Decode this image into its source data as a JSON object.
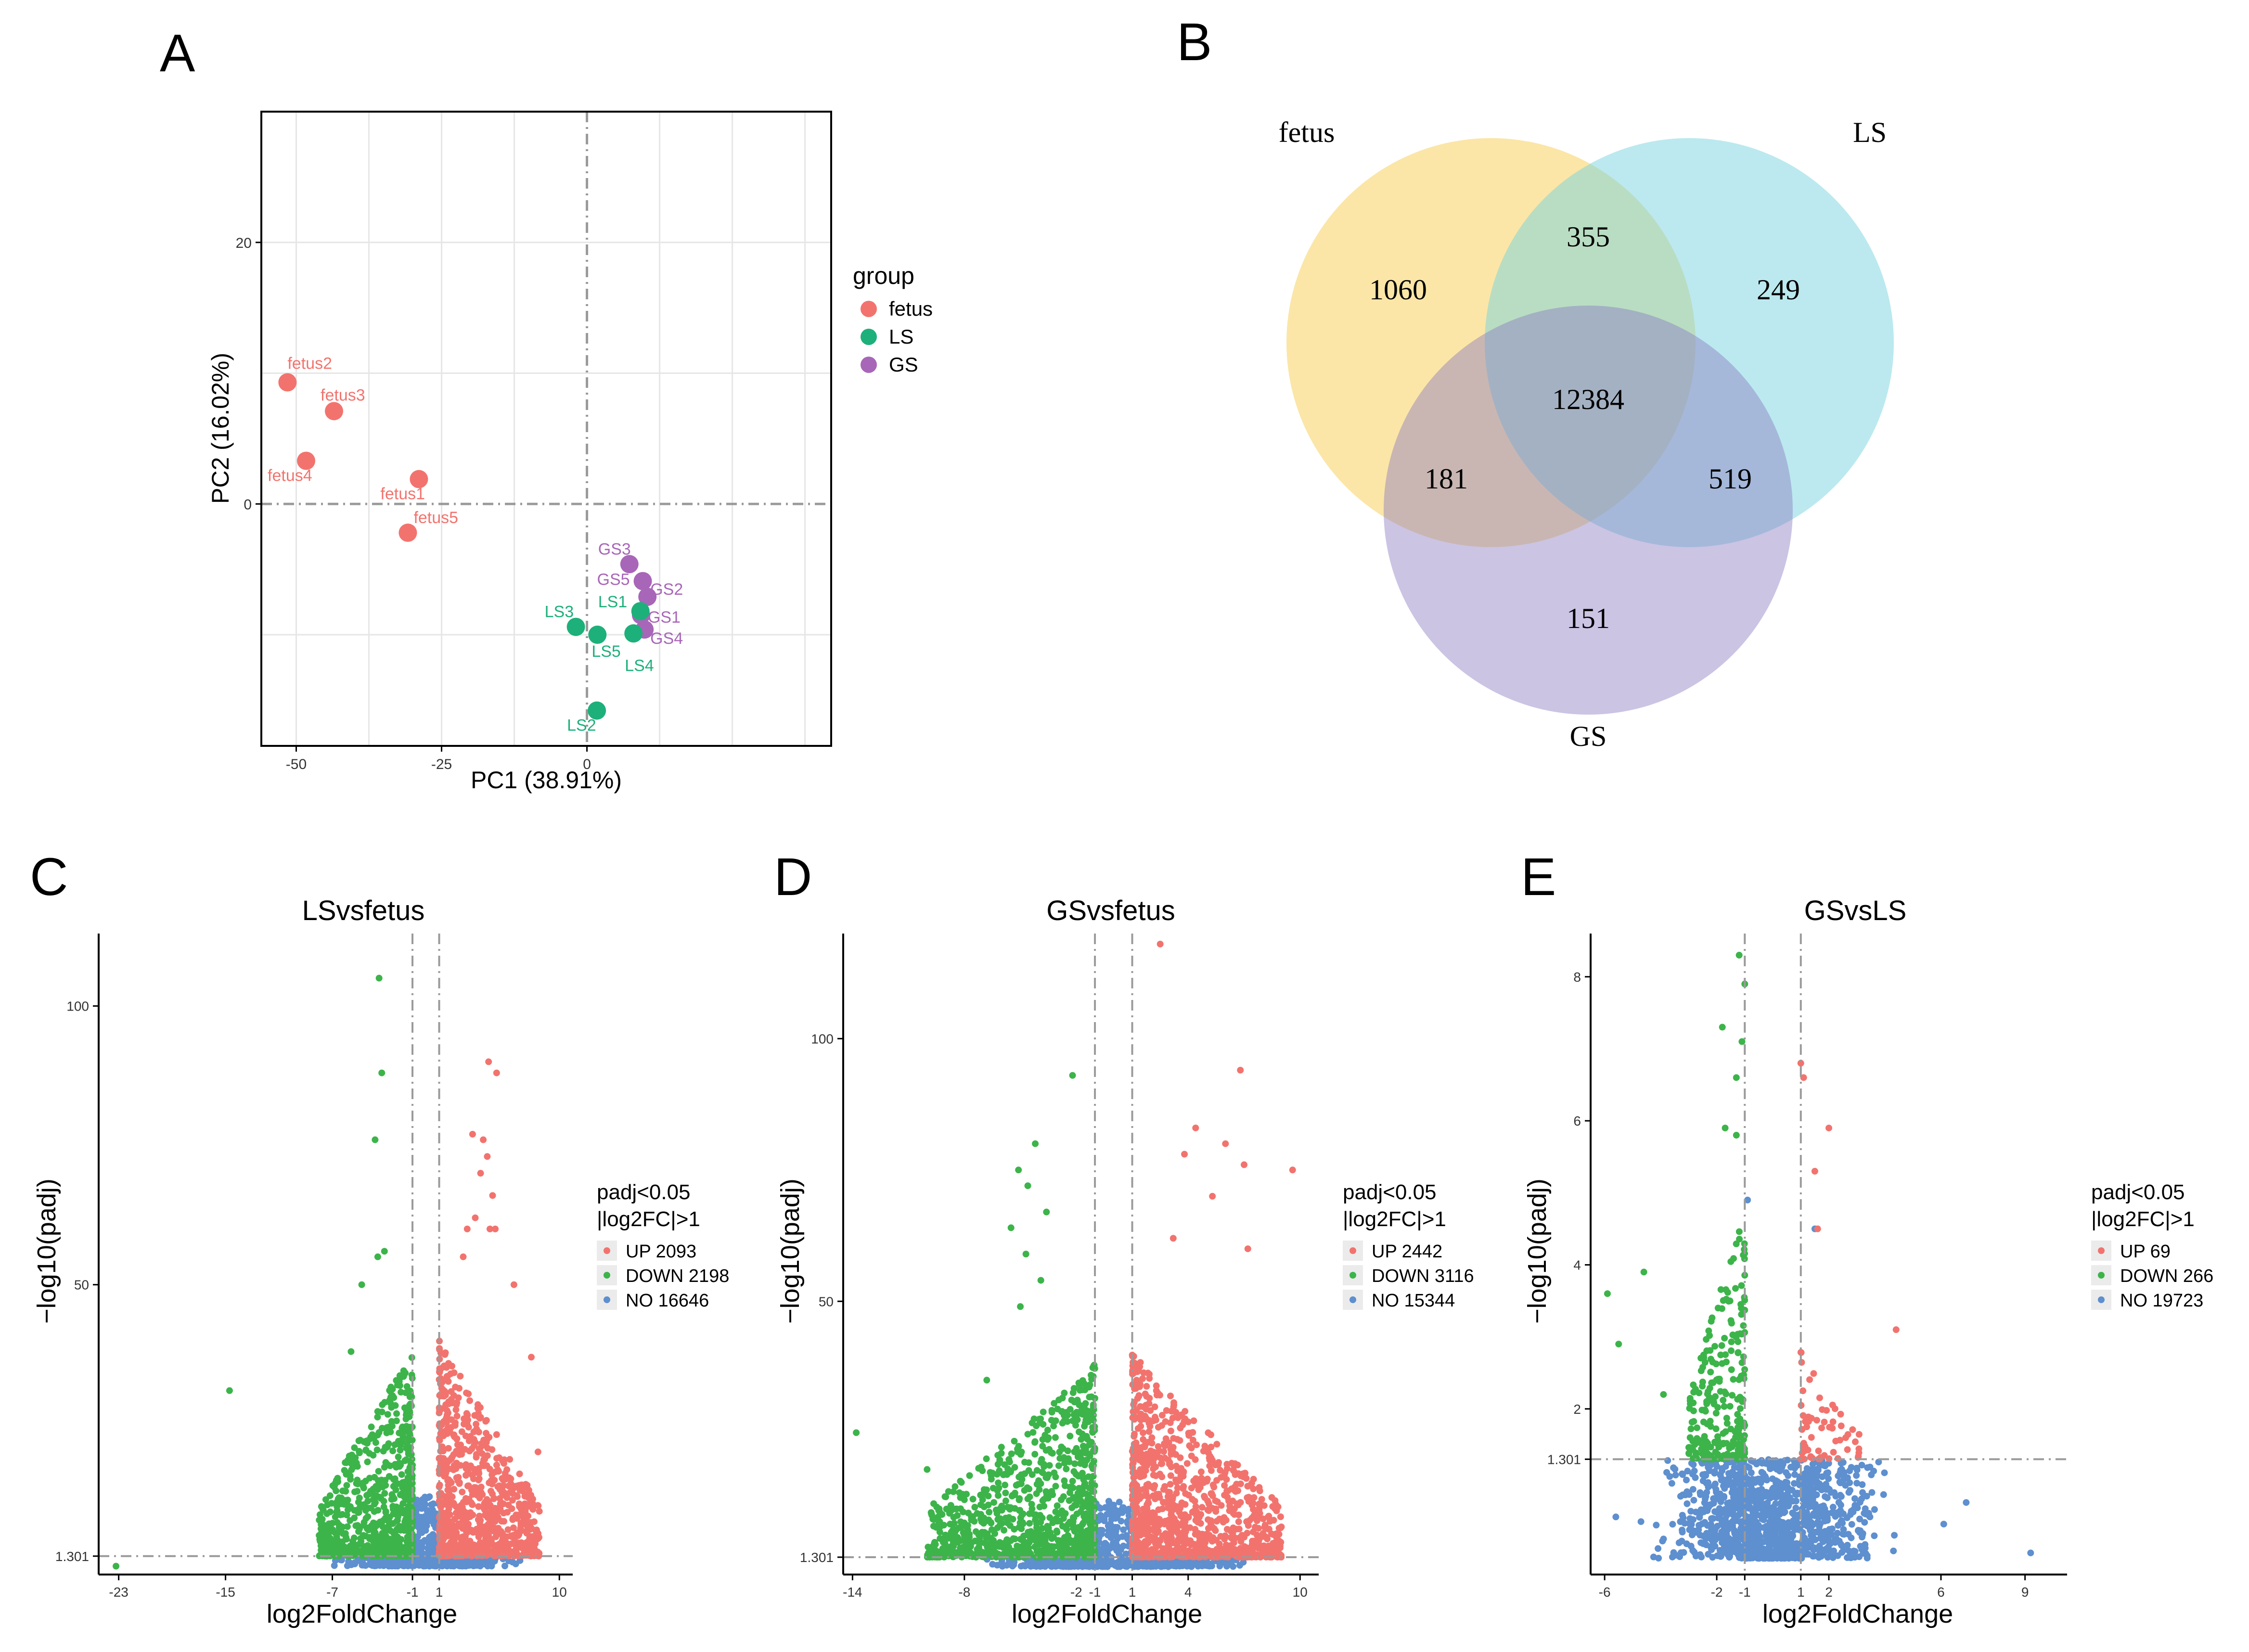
{
  "panel_letters": [
    "A",
    "B",
    "C",
    "D",
    "E"
  ],
  "chart_data": [
    {
      "panel": "A",
      "type": "scatter",
      "xlabel": "PC1 (38.91%)",
      "ylabel": "PC2 (16.02%)",
      "xlim": [
        -56,
        42
      ],
      "ylim": [
        -18.5,
        30
      ],
      "xticks": [
        -50,
        -25,
        0
      ],
      "yticks": [
        0,
        20
      ],
      "legend_title": "group",
      "legend": [
        {
          "name": "fetus",
          "color": "#F2736E"
        },
        {
          "name": "LS",
          "color": "#1DB07B"
        },
        {
          "name": "GS",
          "color": "#A866B8"
        }
      ],
      "points": [
        {
          "label": "fetus2",
          "group": "fetus",
          "x": -51.5,
          "y": 9.3
        },
        {
          "label": "fetus3",
          "group": "fetus",
          "x": -43.5,
          "y": 7.1
        },
        {
          "label": "fetus4",
          "group": "fetus",
          "x": -48.3,
          "y": 3.3
        },
        {
          "label": "fetus1",
          "group": "fetus",
          "x": -28.9,
          "y": 1.9
        },
        {
          "label": "fetus5",
          "group": "fetus",
          "x": -30.8,
          "y": -2.2
        },
        {
          "label": "GS3",
          "group": "GS",
          "x": 7.3,
          "y": -4.6
        },
        {
          "label": "GS5",
          "group": "GS",
          "x": 9.6,
          "y": -5.9
        },
        {
          "label": "GS2",
          "group": "GS",
          "x": 10.4,
          "y": -7.1
        },
        {
          "label": "GS1",
          "group": "GS",
          "x": 9.3,
          "y": -8.5
        },
        {
          "label": "GS4",
          "group": "GS",
          "x": 9.9,
          "y": -9.6
        },
        {
          "label": "LS1",
          "group": "LS",
          "x": 9.2,
          "y": -8.2
        },
        {
          "label": "LS3",
          "group": "LS",
          "x": -1.9,
          "y": -9.4
        },
        {
          "label": "LS5",
          "group": "LS",
          "x": 1.8,
          "y": -10.0
        },
        {
          "label": "LS4",
          "group": "LS",
          "x": 8.0,
          "y": -9.9
        },
        {
          "label": "LS2",
          "group": "LS",
          "x": 1.7,
          "y": -15.8
        }
      ]
    },
    {
      "panel": "B",
      "type": "venn",
      "sets": [
        {
          "name": "fetus",
          "color": "#F9D56C"
        },
        {
          "name": "LS",
          "color": "#78D4E0"
        },
        {
          "name": "GS",
          "color": "#9F90C8"
        }
      ],
      "regions": {
        "fetus_only": "1060",
        "fetus_LS": "355",
        "LS_only": "249",
        "all": "12384",
        "fetus_GS": "181",
        "LS_GS": "519",
        "GS_only": "151"
      }
    },
    {
      "panel": "C",
      "type": "scatter",
      "title": "LSvsfetus",
      "xlabel": "log2FoldChange",
      "ylabel": "−log10(padj)",
      "xlim": [
        -24.5,
        11
      ],
      "ylim": [
        -2,
        113
      ],
      "xticks": [
        -23,
        -15,
        -7,
        -1,
        1,
        10
      ],
      "yticks": [
        100,
        50
      ],
      "threshold_label": "1.301",
      "threshold_y": 1.301,
      "fc_lines": [
        -1,
        1
      ],
      "legend_title": "padj<0.05\n|log2FC|>1",
      "legend": [
        {
          "name": "UP 2093",
          "color": "#F2736E"
        },
        {
          "name": "DOWN 2198",
          "color": "#3CB44A"
        },
        {
          "name": "NO 16646",
          "color": "#5E8FCF"
        }
      ],
      "up": {
        "xr": [
          1,
          8.5
        ],
        "ymax": 40,
        "n": 900
      },
      "down": {
        "xr": [
          -8,
          -1
        ],
        "ymax": 38,
        "n": 700
      },
      "no": {
        "xr": [
          -7,
          7.5
        ],
        "ymax": 12,
        "n": 700
      },
      "outliers_up": [
        [
          2.8,
          55
        ],
        [
          3.1,
          60
        ],
        [
          3.5,
          77
        ],
        [
          4.1,
          70
        ],
        [
          4.3,
          76
        ],
        [
          3.7,
          62
        ],
        [
          4.8,
          60
        ],
        [
          5.2,
          60
        ],
        [
          5.0,
          66
        ],
        [
          4.6,
          73
        ],
        [
          4.7,
          90
        ],
        [
          5.3,
          88
        ],
        [
          6.6,
          50
        ],
        [
          7.9,
          37
        ],
        [
          8.4,
          20
        ]
      ],
      "outliers_down": [
        [
          -3.5,
          105
        ],
        [
          -3.3,
          88
        ],
        [
          -3.8,
          76
        ],
        [
          -3.6,
          55
        ],
        [
          -3.1,
          56
        ],
        [
          -4.8,
          50
        ],
        [
          -5.6,
          38
        ],
        [
          -14.7,
          31
        ],
        [
          -23.2,
          -0.5
        ]
      ]
    },
    {
      "panel": "D",
      "type": "scatter",
      "title": "GSvsfetus",
      "xlabel": "log2FoldChange",
      "ylabel": "−log10(padj)",
      "xlim": [
        -14.5,
        11
      ],
      "ylim": [
        -2,
        120
      ],
      "xticks": [
        -14,
        -8,
        -2,
        -1,
        1,
        4,
        10
      ],
      "yticks": [
        100,
        50
      ],
      "threshold_label": "1.301",
      "threshold_y": 1.301,
      "fc_lines": [
        -1,
        1
      ],
      "legend_title": "padj<0.05\n|log2FC|>1",
      "legend": [
        {
          "name": "UP 2442",
          "color": "#F2736E"
        },
        {
          "name": "DOWN 3116",
          "color": "#3CB44A"
        },
        {
          "name": "NO 15344",
          "color": "#5E8FCF"
        }
      ],
      "up": {
        "xr": [
          1,
          9
        ],
        "ymax": 40,
        "n": 1000
      },
      "down": {
        "xr": [
          -10,
          -1
        ],
        "ymax": 38,
        "n": 900
      },
      "no": {
        "xr": [
          -7,
          8
        ],
        "ymax": 12,
        "n": 700
      },
      "outliers_up": [
        [
          2.5,
          118
        ],
        [
          3.8,
          78
        ],
        [
          4.4,
          83
        ],
        [
          5.3,
          70
        ],
        [
          6.0,
          80
        ],
        [
          6.8,
          94
        ],
        [
          7.0,
          76
        ],
        [
          7.2,
          60
        ],
        [
          9.6,
          75
        ],
        [
          3.2,
          62
        ]
      ],
      "outliers_down": [
        [
          -13.8,
          25
        ],
        [
          -10,
          18
        ],
        [
          -2.2,
          93
        ],
        [
          -4.2,
          80
        ],
        [
          -5.1,
          75
        ],
        [
          -4.6,
          72
        ],
        [
          -5.5,
          64
        ],
        [
          -4.7,
          59
        ],
        [
          -3.6,
          67
        ],
        [
          -3.9,
          54
        ],
        [
          -5.0,
          49
        ],
        [
          -6.8,
          35
        ]
      ]
    },
    {
      "panel": "E",
      "type": "scatter",
      "title": "GSvsLS",
      "xlabel": "log2FoldChange",
      "ylabel": "−log10(padj)",
      "xlim": [
        -6.5,
        10.5
      ],
      "ylim": [
        -0.3,
        8.6
      ],
      "xticks": [
        -6,
        -2,
        -1,
        1,
        2,
        6,
        9
      ],
      "yticks": [
        8,
        6,
        4,
        2
      ],
      "threshold_label": "1.301",
      "threshold_y": 1.301,
      "fc_lines": [
        -1,
        1
      ],
      "legend_title": "padj<0.05\n|log2FC|>1",
      "legend": [
        {
          "name": "UP 69",
          "color": "#F2736E"
        },
        {
          "name": "DOWN 266",
          "color": "#3CB44A"
        },
        {
          "name": "NO 19723",
          "color": "#5E8FCF"
        }
      ],
      "up": {
        "xr": [
          1,
          3.2
        ],
        "ymax": 2.8,
        "n": 60
      },
      "down": {
        "xr": [
          -3,
          -1
        ],
        "ymax": 4.8,
        "n": 250
      },
      "no": {
        "xr": [
          -5,
          5
        ],
        "ymax": 1.3,
        "n": 1200
      },
      "outliers_up": [
        [
          1.0,
          6.8
        ],
        [
          1.1,
          6.6
        ],
        [
          2.0,
          5.9
        ],
        [
          1.5,
          5.3
        ],
        [
          1.6,
          4.5
        ],
        [
          4.4,
          3.1
        ],
        [
          2.6,
          1.6
        ]
      ],
      "outliers_down": [
        [
          -1.2,
          8.3
        ],
        [
          -1.0,
          7.9
        ],
        [
          -1.8,
          7.3
        ],
        [
          -1.1,
          7.1
        ],
        [
          -1.3,
          6.6
        ],
        [
          -1.7,
          5.9
        ],
        [
          -1.3,
          5.8
        ],
        [
          -5.9,
          3.6
        ],
        [
          -5.5,
          2.9
        ],
        [
          -4.6,
          3.9
        ],
        [
          -3.9,
          2.2
        ]
      ],
      "outliers_no": [
        [
          -0.9,
          4.9
        ],
        [
          1.5,
          4.5
        ],
        [
          6.1,
          0.4
        ],
        [
          6.9,
          0.7
        ],
        [
          9.2,
          0.0
        ],
        [
          -5.6,
          0.5
        ]
      ]
    }
  ]
}
